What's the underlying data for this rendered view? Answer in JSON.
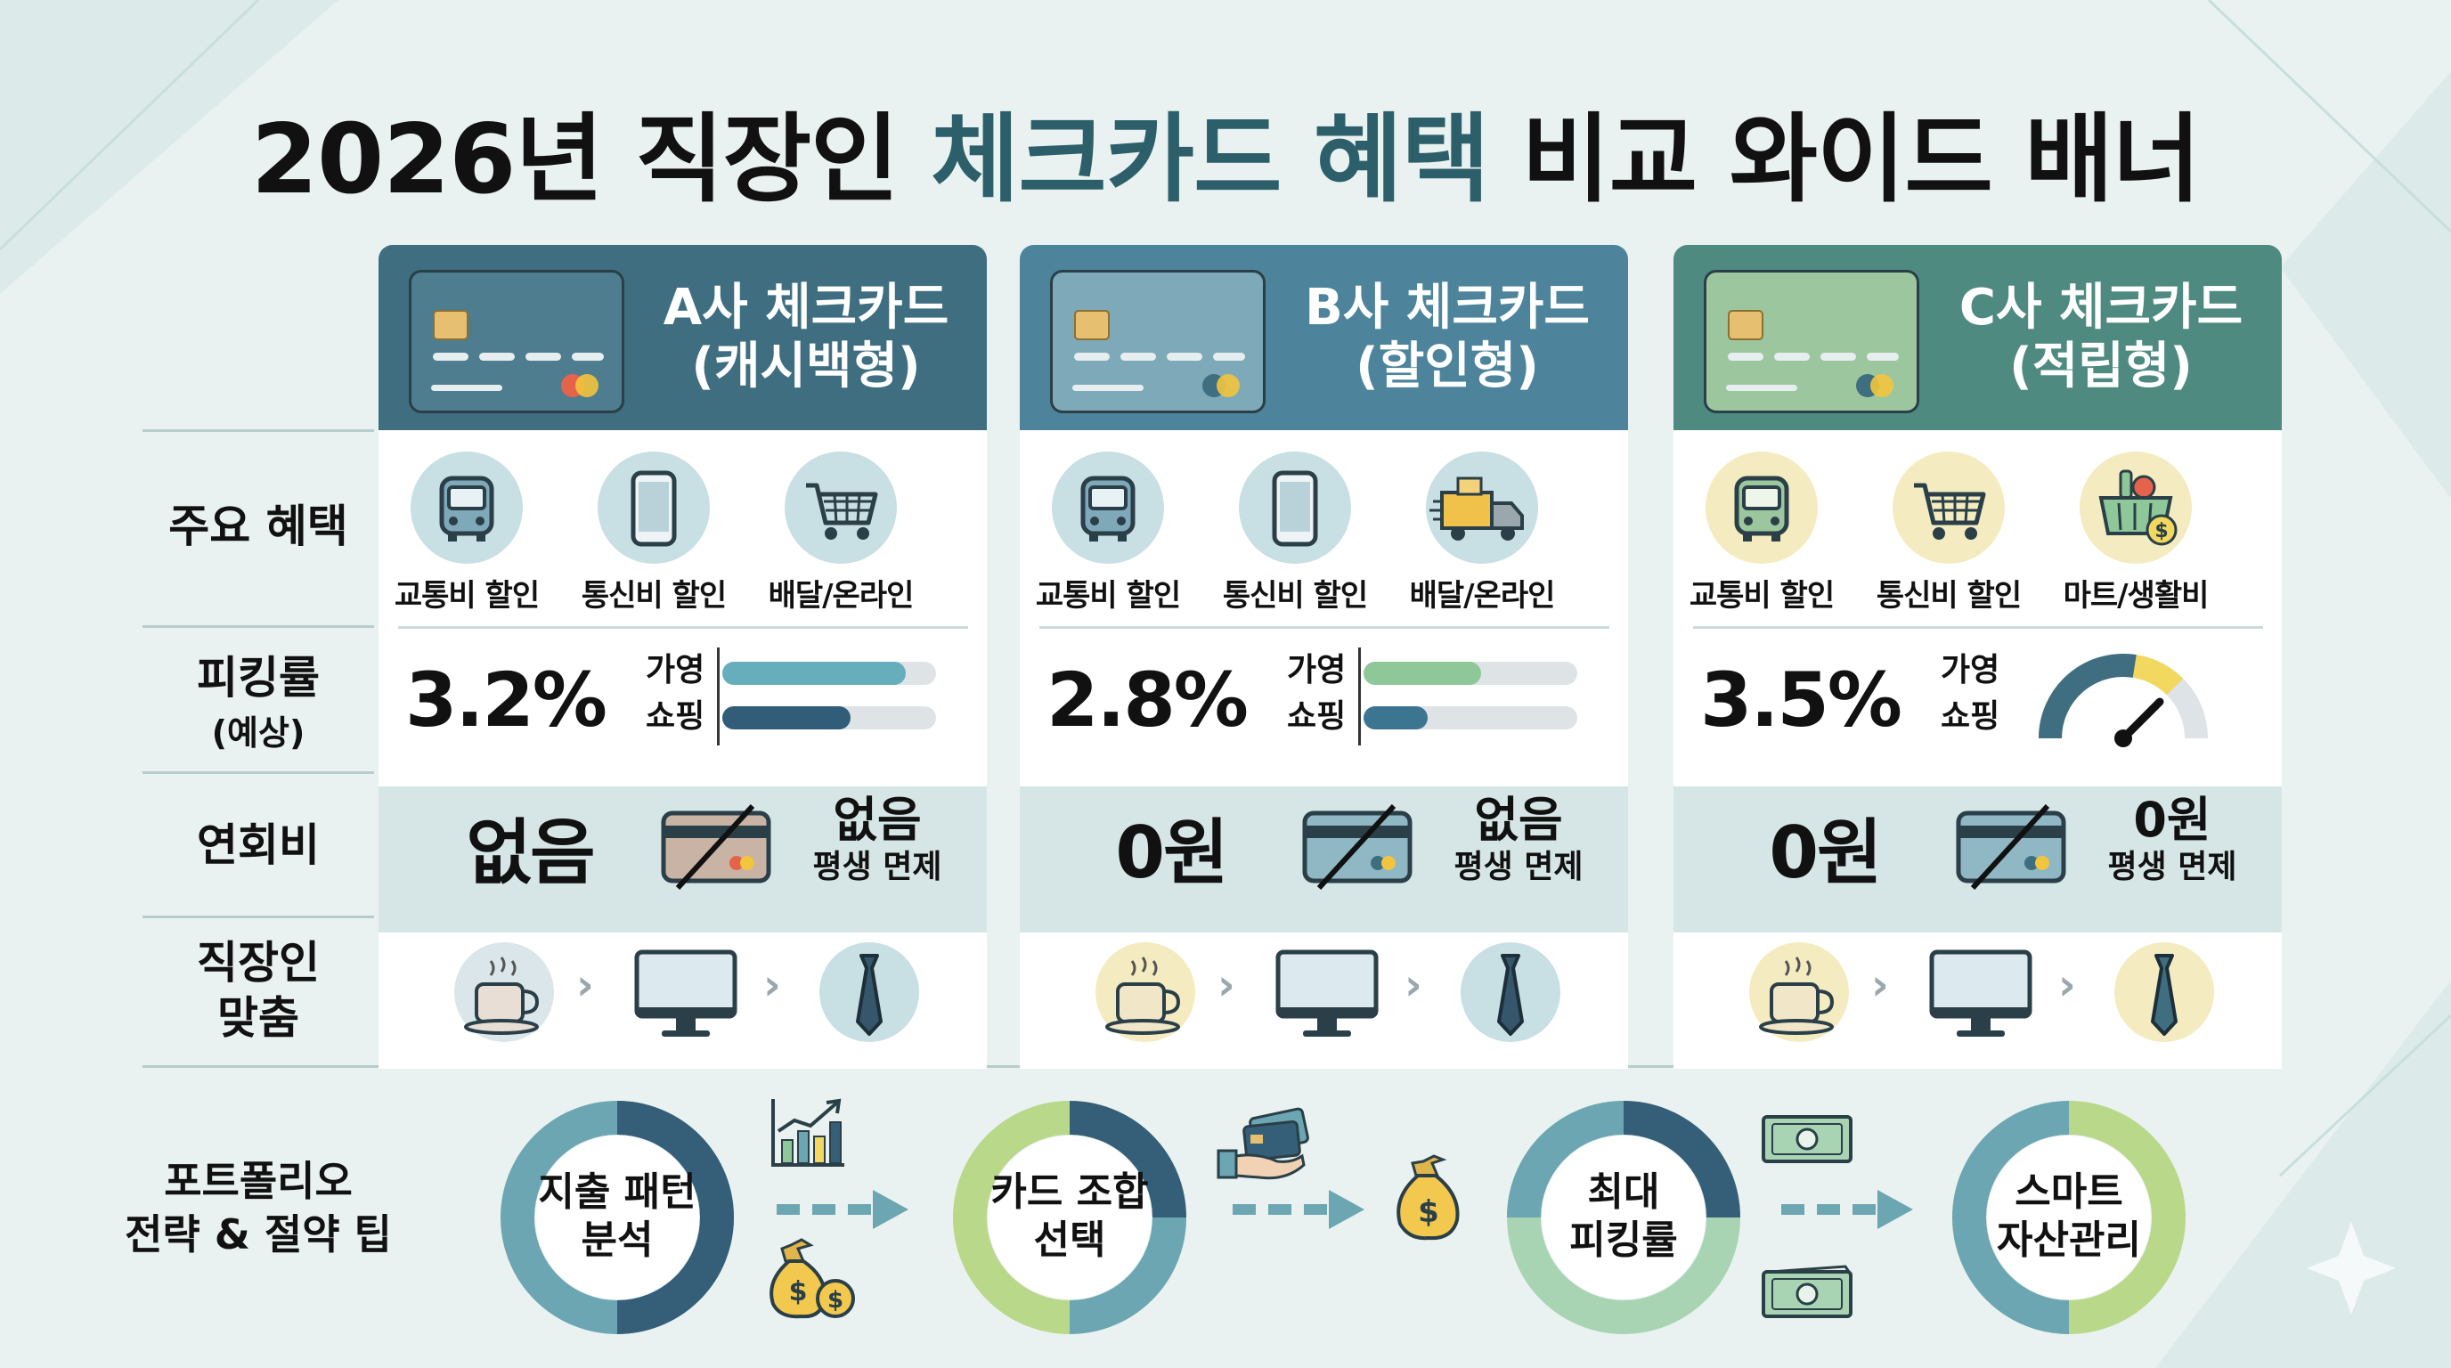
{
  "title": {
    "part1": "2026년 직장인 ",
    "highlight": "체크카드 혜택",
    "part2": " 비교 와이드 배너"
  },
  "colors": {
    "a_header": "#3e6e80",
    "b_header": "#4d849b",
    "c_header": "#4e8a80",
    "accent_teal": "#67aebd",
    "accent_navy": "#325d78",
    "accent_green": "#8ec798",
    "accent_yellow": "#f2d85e"
  },
  "row_labels": {
    "benefits": "주요 혜택",
    "rate": "피킹률",
    "rate_sub": "(예상)",
    "fee": "연회비",
    "fit_line1": "직장인",
    "fit_line2": "맞춤",
    "portfolio_line1": "포트폴리오",
    "portfolio_line2": "전략 & 절약 팁"
  },
  "cards": [
    {
      "name": "A사 체크카드",
      "type": "(캐시백형)",
      "benefits": [
        {
          "icon": "bus-icon",
          "label": "교통비 할인"
        },
        {
          "icon": "phone-icon",
          "label": "통신비 할인"
        },
        {
          "icon": "cart-icon",
          "label": "배달/온라인"
        }
      ],
      "rate": "3.2%",
      "rate_labels": [
        "가영",
        "쇼핑"
      ],
      "rate_bars": [
        0.86,
        0.6
      ],
      "fee": "없음",
      "fee_side_main": "없음",
      "fee_side_sub": "평생 면제",
      "fit_icons": [
        "coffee-icon",
        "monitor-icon",
        "tie-icon"
      ]
    },
    {
      "name": "B사 체크카드",
      "type": "(할인형)",
      "benefits": [
        {
          "icon": "bus-icon",
          "label": "교통비 할인"
        },
        {
          "icon": "phone-icon",
          "label": "통신비 할인"
        },
        {
          "icon": "delivery-truck-icon",
          "label": "배달/온라인"
        }
      ],
      "rate": "2.8%",
      "rate_labels": [
        "가영",
        "쇼핑"
      ],
      "rate_bars": [
        0.55,
        0.3
      ],
      "fee": "0원",
      "fee_side_main": "없음",
      "fee_side_sub": "평생 면제",
      "fit_icons": [
        "coffee-icon",
        "monitor-icon",
        "tie-icon"
      ]
    },
    {
      "name": "C사 체크카드",
      "type": "(적립형)",
      "benefits": [
        {
          "icon": "bus-icon",
          "label": "교통비 할인"
        },
        {
          "icon": "cart-icon",
          "label": "통신비 할인"
        },
        {
          "icon": "grocery-basket-icon",
          "label": "마트/생활비"
        }
      ],
      "rate": "3.5%",
      "rate_labels": [
        "가영",
        "쇼핑"
      ],
      "rate_gauge": 0.75,
      "fee": "0원",
      "fee_side_main": "0원",
      "fee_side_sub": "평생 면제",
      "fit_icons": [
        "coffee-icon",
        "monitor-icon",
        "tie-icon"
      ]
    }
  ],
  "flow": [
    {
      "line1": "지출 패턴",
      "line2": "분석"
    },
    {
      "line1": "카드 조합",
      "line2": "선택"
    },
    {
      "line1": "최대",
      "line2": "피킹률"
    },
    {
      "line1": "스마트",
      "line2": "자산관리"
    }
  ]
}
